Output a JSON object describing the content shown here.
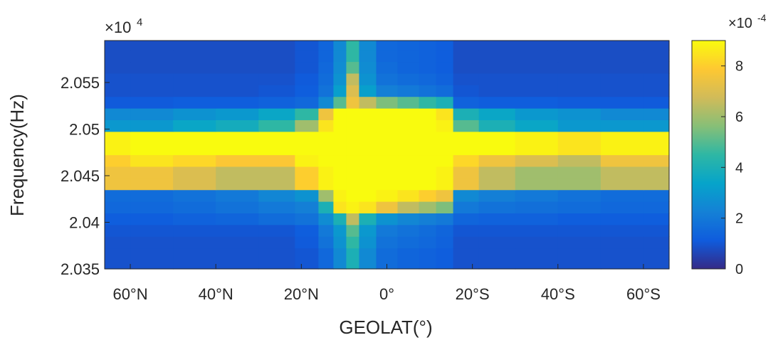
{
  "chart_data": {
    "type": "heatmap",
    "title": "",
    "xlabel": "GEOLAT(°)",
    "ylabel": "Frequency(Hz)",
    "x_ticks": [
      "60°N",
      "40°N",
      "20°N",
      "0°",
      "20°S",
      "40°S",
      "60°S"
    ],
    "x_tick_values": [
      60,
      40,
      20,
      0,
      -20,
      -40,
      -60
    ],
    "xlim": [
      66,
      -66
    ],
    "y_ticks": [
      "2.035",
      "2.04",
      "2.045",
      "2.05",
      "2.055"
    ],
    "y_tick_values": [
      2.035,
      2.04,
      2.045,
      2.05,
      2.055
    ],
    "y_multiplier": "×10",
    "y_multiplier_exp": "4",
    "ylim": [
      2.035,
      2.0595
    ],
    "colorbar": {
      "ticks": [
        "0",
        "2",
        "4",
        "6",
        "8"
      ],
      "tick_values": [
        0,
        2,
        4,
        6,
        8
      ],
      "range": [
        0,
        9
      ],
      "multiplier": "×10",
      "multiplier_exp": "-4",
      "colormap": "parula"
    },
    "frequency_bands_x1e4": [
      2.0354,
      2.0366,
      2.0379,
      2.0391,
      2.0404,
      2.0416,
      2.0429,
      2.0441,
      2.0454,
      2.0466,
      2.0479,
      2.0491,
      2.0504,
      2.0516,
      2.0529,
      2.0541,
      2.0554,
      2.0566,
      2.0579,
      2.0591
    ],
    "latitude_bins": [
      65,
      55,
      45,
      35,
      25,
      18,
      14,
      11,
      8,
      5,
      0,
      -5,
      -10,
      -13,
      -18,
      -25,
      -35,
      -45,
      -55,
      -65
    ],
    "values_x1e-4": [
      [
        0.9,
        0.9,
        0.9,
        0.9,
        0.9,
        1.0,
        1.5,
        2.5,
        4.0,
        2.5,
        1.6,
        1.4,
        1.3,
        1.2,
        0.9,
        0.9,
        0.9,
        0.9,
        0.9,
        0.9
      ],
      [
        0.9,
        0.9,
        0.9,
        0.9,
        0.9,
        1.0,
        1.5,
        2.5,
        4.0,
        2.5,
        1.6,
        1.4,
        1.3,
        1.2,
        0.9,
        0.9,
        0.9,
        0.9,
        0.9,
        0.9
      ],
      [
        0.9,
        0.9,
        0.9,
        0.9,
        0.9,
        1.1,
        1.8,
        2.8,
        4.5,
        2.8,
        1.8,
        1.6,
        1.5,
        1.3,
        0.9,
        0.9,
        0.9,
        0.9,
        0.9,
        0.9
      ],
      [
        1.0,
        1.0,
        1.0,
        1.0,
        1.0,
        1.2,
        2.0,
        3.0,
        5.0,
        3.0,
        2.0,
        1.8,
        1.6,
        1.4,
        1.0,
        1.0,
        1.0,
        1.0,
        1.0,
        1.0
      ],
      [
        1.2,
        1.2,
        1.3,
        1.4,
        1.6,
        1.8,
        2.6,
        4.0,
        6.5,
        4.0,
        2.8,
        2.4,
        2.2,
        2.0,
        1.4,
        1.3,
        1.3,
        1.2,
        1.2,
        1.2
      ],
      [
        1.5,
        1.5,
        1.6,
        1.8,
        2.0,
        2.2,
        4.0,
        8.5,
        8.8,
        8.5,
        7.5,
        6.5,
        6.0,
        5.5,
        2.0,
        1.8,
        1.7,
        1.6,
        1.5,
        1.5
      ],
      [
        1.6,
        1.6,
        1.8,
        2.0,
        2.4,
        2.8,
        6.0,
        8.8,
        9.0,
        9.0,
        8.8,
        8.5,
        8.0,
        7.5,
        2.5,
        2.2,
        2.0,
        1.8,
        1.6,
        1.6
      ],
      [
        7.5,
        7.5,
        7.0,
        6.5,
        6.5,
        8.0,
        8.8,
        9.0,
        9.0,
        9.0,
        9.0,
        9.0,
        9.0,
        8.8,
        7.5,
        6.5,
        6.0,
        6.0,
        6.5,
        6.5
      ],
      [
        7.5,
        7.5,
        7.0,
        6.5,
        6.5,
        8.0,
        8.8,
        9.0,
        9.0,
        9.0,
        9.0,
        9.0,
        9.0,
        8.8,
        7.5,
        6.5,
        6.0,
        6.0,
        6.5,
        6.5
      ],
      [
        8.0,
        8.5,
        8.2,
        7.8,
        7.8,
        8.8,
        9.0,
        9.0,
        9.0,
        9.0,
        9.0,
        9.0,
        9.0,
        9.0,
        8.2,
        7.5,
        7.0,
        6.5,
        7.5,
        7.5
      ],
      [
        8.8,
        9.0,
        9.0,
        9.0,
        9.0,
        9.0,
        9.0,
        9.0,
        9.0,
        9.0,
        9.0,
        9.0,
        9.0,
        9.0,
        9.0,
        9.0,
        8.8,
        8.5,
        8.8,
        8.8
      ],
      [
        8.8,
        9.0,
        9.0,
        9.0,
        9.0,
        9.0,
        9.0,
        9.0,
        9.0,
        9.0,
        9.0,
        9.0,
        9.0,
        9.0,
        9.0,
        9.0,
        8.8,
        8.5,
        8.8,
        8.8
      ],
      [
        3.0,
        3.0,
        3.5,
        3.8,
        4.5,
        6.0,
        8.5,
        9.0,
        9.0,
        9.0,
        9.0,
        9.0,
        9.0,
        8.8,
        5.0,
        4.0,
        3.5,
        3.0,
        3.0,
        3.0
      ],
      [
        2.5,
        2.5,
        2.8,
        3.0,
        3.5,
        4.5,
        7.5,
        9.0,
        9.0,
        9.0,
        9.0,
        9.0,
        9.0,
        8.5,
        4.0,
        3.5,
        3.0,
        2.8,
        2.5,
        2.5
      ],
      [
        1.1,
        1.1,
        1.2,
        1.2,
        1.3,
        1.5,
        2.5,
        5.0,
        7.5,
        6.5,
        5.5,
        5.0,
        4.5,
        4.0,
        1.3,
        1.2,
        1.2,
        1.1,
        1.1,
        1.1
      ],
      [
        0.9,
        0.9,
        0.9,
        0.9,
        1.0,
        1.2,
        1.8,
        3.2,
        7.0,
        3.2,
        2.2,
        2.0,
        1.8,
        1.6,
        1.0,
        0.9,
        0.9,
        0.9,
        0.9,
        0.9
      ],
      [
        0.9,
        0.9,
        0.9,
        0.9,
        0.9,
        1.1,
        1.6,
        2.8,
        6.5,
        2.8,
        1.8,
        1.6,
        1.5,
        1.3,
        0.9,
        0.9,
        0.9,
        0.9,
        0.9,
        0.9
      ],
      [
        0.8,
        0.8,
        0.8,
        0.8,
        0.8,
        1.0,
        1.5,
        2.6,
        5.0,
        2.6,
        1.6,
        1.4,
        1.3,
        1.2,
        0.8,
        0.8,
        0.8,
        0.8,
        0.8,
        0.8
      ],
      [
        0.8,
        0.8,
        0.8,
        0.8,
        0.8,
        1.0,
        1.4,
        2.5,
        4.5,
        2.5,
        1.5,
        1.4,
        1.3,
        1.2,
        0.8,
        0.8,
        0.8,
        0.8,
        0.8,
        0.8
      ],
      [
        0.8,
        0.8,
        0.8,
        0.8,
        0.8,
        1.0,
        1.4,
        2.5,
        4.5,
        2.5,
        1.5,
        1.4,
        1.3,
        1.2,
        0.8,
        0.8,
        0.8,
        0.8,
        0.8,
        0.8
      ]
    ]
  }
}
